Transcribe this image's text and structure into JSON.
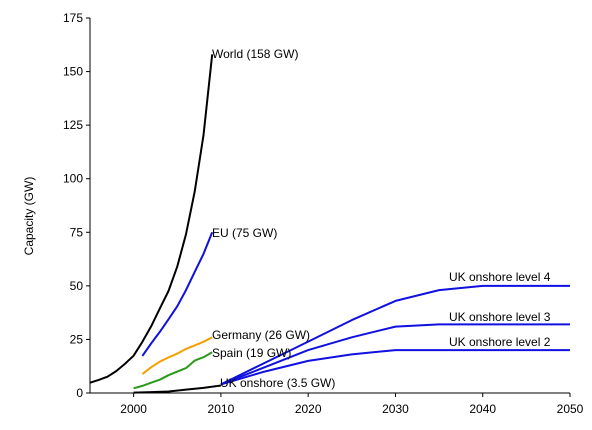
{
  "chart_data": {
    "type": "line",
    "title": "",
    "xlabel": "",
    "ylabel": "Capacity (GW)",
    "xlim": [
      1995,
      2050
    ],
    "ylim": [
      0,
      175
    ],
    "x_ticks": [
      2000,
      2010,
      2020,
      2030,
      2040,
      2050
    ],
    "y_ticks": [
      0,
      25,
      50,
      75,
      100,
      125,
      150,
      175
    ],
    "grid": false,
    "legend": "none",
    "series": [
      {
        "key": "world",
        "label": "World (158 GW)",
        "color": "#000000",
        "points": [
          [
            1995,
            4.8
          ],
          [
            1996,
            6.1
          ],
          [
            1997,
            7.6
          ],
          [
            1998,
            10.2
          ],
          [
            1999,
            13.6
          ],
          [
            2000,
            17.4
          ],
          [
            2001,
            23.9
          ],
          [
            2002,
            31.1
          ],
          [
            2003,
            39.4
          ],
          [
            2004,
            47.6
          ],
          [
            2005,
            59.1
          ],
          [
            2006,
            74.1
          ],
          [
            2007,
            94.0
          ],
          [
            2008,
            120.3
          ],
          [
            2009,
            158
          ]
        ]
      },
      {
        "key": "eu",
        "label": "EU (75 GW)",
        "color": "#1010e0",
        "points": [
          [
            2001,
            17.3
          ],
          [
            2002,
            23.1
          ],
          [
            2003,
            28.5
          ],
          [
            2004,
            34.4
          ],
          [
            2005,
            40.5
          ],
          [
            2006,
            48.0
          ],
          [
            2007,
            56.5
          ],
          [
            2008,
            64.9
          ],
          [
            2009,
            75
          ]
        ]
      },
      {
        "key": "germany",
        "label": "Germany (26 GW)",
        "color": "#f5a000",
        "points": [
          [
            2001,
            8.8
          ],
          [
            2002,
            12.0
          ],
          [
            2003,
            14.6
          ],
          [
            2004,
            16.6
          ],
          [
            2005,
            18.4
          ],
          [
            2006,
            20.6
          ],
          [
            2007,
            22.2
          ],
          [
            2008,
            23.9
          ],
          [
            2009,
            26
          ]
        ]
      },
      {
        "key": "spain",
        "label": "Spain (19 GW)",
        "color": "#2a9a1a",
        "points": [
          [
            2000,
            2.2
          ],
          [
            2001,
            3.3
          ],
          [
            2002,
            4.8
          ],
          [
            2003,
            6.2
          ],
          [
            2004,
            8.3
          ],
          [
            2005,
            10.0
          ],
          [
            2006,
            11.6
          ],
          [
            2007,
            15.1
          ],
          [
            2008,
            16.7
          ],
          [
            2009,
            19
          ]
        ]
      },
      {
        "key": "uk_onshore",
        "label": "UK onshore (3.5 GW)",
        "color": "#000000",
        "points": [
          [
            2000,
            0.2
          ],
          [
            2002,
            0.4
          ],
          [
            2004,
            0.7
          ],
          [
            2006,
            1.6
          ],
          [
            2008,
            2.4
          ],
          [
            2010,
            3.5
          ]
        ]
      },
      {
        "key": "uk_level2",
        "label": "UK onshore level 2",
        "color": "#1010e0",
        "points": [
          [
            2010,
            4.0
          ],
          [
            2015,
            10.0
          ],
          [
            2020,
            15.0
          ],
          [
            2025,
            18.0
          ],
          [
            2030,
            20.0
          ],
          [
            2035,
            20.0
          ],
          [
            2040,
            20.0
          ],
          [
            2045,
            20.0
          ],
          [
            2050,
            20.0
          ]
        ]
      },
      {
        "key": "uk_level3",
        "label": "UK onshore level 3",
        "color": "#1010e0",
        "points": [
          [
            2010,
            4.0
          ],
          [
            2015,
            12.0
          ],
          [
            2020,
            20.0
          ],
          [
            2025,
            26.0
          ],
          [
            2030,
            31.0
          ],
          [
            2035,
            32.0
          ],
          [
            2040,
            32.0
          ],
          [
            2045,
            32.0
          ],
          [
            2050,
            32.0
          ]
        ]
      },
      {
        "key": "uk_level4",
        "label": "UK onshore level 4",
        "color": "#1010e0",
        "points": [
          [
            2010,
            4.0
          ],
          [
            2015,
            14.0
          ],
          [
            2020,
            24.0
          ],
          [
            2025,
            34.0
          ],
          [
            2030,
            43.0
          ],
          [
            2035,
            48.0
          ],
          [
            2040,
            50.0
          ],
          [
            2045,
            50.0
          ],
          [
            2050,
            50.0
          ]
        ]
      }
    ]
  }
}
